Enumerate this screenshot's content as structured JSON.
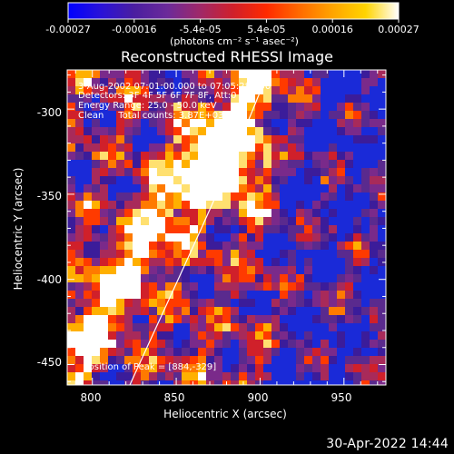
{
  "colorbar": {
    "ticks": [
      "-0.00027",
      "-0.00016",
      "-5.4e-05",
      "5.4e-05",
      "0.00016",
      "0.00027"
    ],
    "unit_label": "(photons cm⁻² s⁻¹ asec⁻²)",
    "colors": [
      "#0000ff",
      "#2a12d8",
      "#4a1ea0",
      "#6b2a9a",
      "#a02868",
      "#d0202a",
      "#ff2a00",
      "#ff6a00",
      "#ffa400",
      "#ffd400",
      "#ffffff"
    ]
  },
  "title": "Reconstructed RHESSI Image",
  "annotations": [
    "3-Aug-2002 07:01:00.000 to 07:05:28.000",
    "Detectors: 3F 4F 5F 6F 7F 8F, Att:0",
    "Energy Range: 25.0 - 50.0 keV",
    "Clean     Total counts: 3.87E+03"
  ],
  "peak_label": "Position of Peak = [884,-329]",
  "axes": {
    "x_label": "Heliocentric X (arcsec)",
    "y_label": "Heliocentric Y (arcsec)",
    "x_ticks": [
      "800",
      "850",
      "900",
      "950"
    ],
    "y_ticks": [
      "-300",
      "-350",
      "-400",
      "-450"
    ],
    "x_range": [
      785,
      975
    ],
    "y_range": [
      -462,
      -277
    ]
  },
  "footer_timestamp": "30-Apr-2022 14:44"
}
